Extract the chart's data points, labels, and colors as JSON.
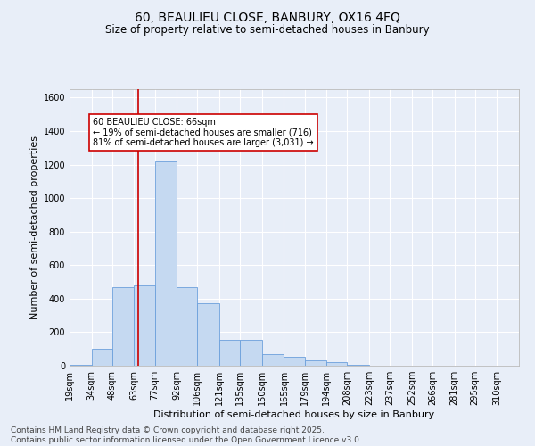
{
  "title1": "60, BEAULIEU CLOSE, BANBURY, OX16 4FQ",
  "title2": "Size of property relative to semi-detached houses in Banbury",
  "xlabel": "Distribution of semi-detached houses by size in Banbury",
  "ylabel": "Number of semi-detached properties",
  "bin_labels": [
    "19sqm",
    "34sqm",
    "48sqm",
    "63sqm",
    "77sqm",
    "92sqm",
    "106sqm",
    "121sqm",
    "135sqm",
    "150sqm",
    "165sqm",
    "179sqm",
    "194sqm",
    "208sqm",
    "223sqm",
    "237sqm",
    "252sqm",
    "266sqm",
    "281sqm",
    "295sqm",
    "310sqm"
  ],
  "bin_edges": [
    19,
    34,
    48,
    63,
    77,
    92,
    106,
    121,
    135,
    150,
    165,
    179,
    194,
    208,
    223,
    237,
    252,
    266,
    281,
    295,
    310
  ],
  "bar_heights": [
    5,
    100,
    470,
    480,
    1220,
    470,
    370,
    155,
    155,
    70,
    55,
    30,
    20,
    5,
    2,
    1,
    1,
    0,
    0,
    0,
    0
  ],
  "bar_color": "#C5D9F1",
  "bar_edge_color": "#6CA0DC",
  "property_size": 66,
  "red_line_color": "#CC0000",
  "annotation_text": "60 BEAULIEU CLOSE: 66sqm\n← 19% of semi-detached houses are smaller (716)\n81% of semi-detached houses are larger (3,031) →",
  "annotation_box_color": "#CC0000",
  "ylim": [
    0,
    1650
  ],
  "yticks": [
    0,
    200,
    400,
    600,
    800,
    1000,
    1200,
    1400,
    1600
  ],
  "background_color": "#E8EEF8",
  "grid_color": "#FFFFFF",
  "footer_line1": "Contains HM Land Registry data © Crown copyright and database right 2025.",
  "footer_line2": "Contains public sector information licensed under the Open Government Licence v3.0.",
  "title1_fontsize": 10,
  "title2_fontsize": 8.5,
  "axis_label_fontsize": 8,
  "tick_fontsize": 7,
  "annotation_fontsize": 7,
  "footer_fontsize": 6.5
}
